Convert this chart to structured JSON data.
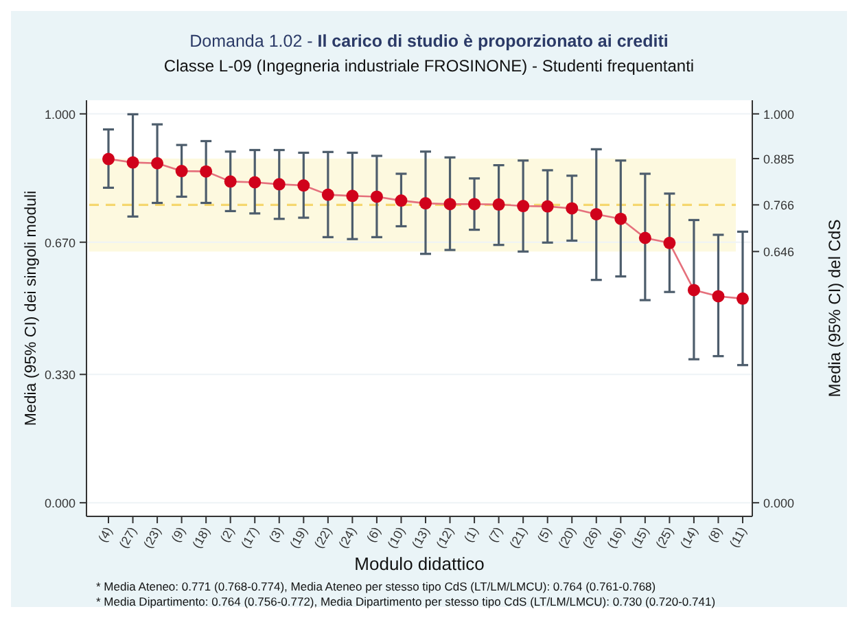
{
  "chart_data": {
    "type": "line",
    "title": "Domanda 1.02 - Il carico di studio è proporzionato ai crediti",
    "subtitle": "Classe L-09 (Ingegneria industriale FROSINONE) - Studenti frequentanti",
    "xlabel": "Modulo didattico",
    "ylabel": "Media (95% CI) dei singoli moduli",
    "y2label": "Media (95% CI) del CdS",
    "categories": [
      "(4)",
      "(27)",
      "(23)",
      "(9)",
      "(18)",
      "(2)",
      "(17)",
      "(3)",
      "(19)",
      "(22)",
      "(24)",
      "(6)",
      "(10)",
      "(13)",
      "(12)",
      "(1)",
      "(7)",
      "(21)",
      "(5)",
      "(20)",
      "(26)",
      "(16)",
      "(15)",
      "(25)",
      "(14)",
      "(8)",
      "(11)"
    ],
    "series": [
      {
        "color": "#d0021b",
        "values": [
          0.884,
          0.875,
          0.873,
          0.853,
          0.852,
          0.826,
          0.824,
          0.819,
          0.816,
          0.792,
          0.789,
          0.787,
          0.777,
          0.77,
          0.768,
          0.768,
          0.767,
          0.763,
          0.762,
          0.757,
          0.742,
          0.73,
          0.681,
          0.668,
          0.547,
          0.531,
          0.525
        ],
        "errors": [
          [
            0.81,
            0.96
          ],
          [
            0.736,
            0.999
          ],
          [
            0.771,
            0.973
          ],
          [
            0.787,
            0.92
          ],
          [
            0.771,
            0.93
          ],
          [
            0.75,
            0.903
          ],
          [
            0.744,
            0.907
          ],
          [
            0.73,
            0.907
          ],
          [
            0.733,
            0.9
          ],
          [
            0.683,
            0.902
          ],
          [
            0.678,
            0.9
          ],
          [
            0.683,
            0.892
          ],
          [
            0.711,
            0.846
          ],
          [
            0.64,
            0.903
          ],
          [
            0.65,
            0.888
          ],
          [
            0.702,
            0.834
          ],
          [
            0.663,
            0.868
          ],
          [
            0.646,
            0.88
          ],
          [
            0.669,
            0.855
          ],
          [
            0.674,
            0.841
          ],
          [
            0.573,
            0.909
          ],
          [
            0.582,
            0.88
          ],
          [
            0.521,
            0.846
          ],
          [
            0.542,
            0.795
          ],
          [
            0.369,
            0.727
          ],
          [
            0.377,
            0.689
          ],
          [
            0.354,
            0.697
          ]
        ]
      }
    ],
    "ylim": [
      -0.035,
      1.035
    ],
    "yticks": [
      {
        "value": 0,
        "label": "0.000"
      },
      {
        "value": 0.33,
        "label": "0.330"
      },
      {
        "value": 0.67,
        "label": "0.670"
      },
      {
        "value": 1,
        "label": "1.000"
      }
    ],
    "y2lim": [
      -0.035,
      1.035
    ],
    "y2ticks": [
      {
        "value": 0,
        "label": "0.000"
      },
      {
        "value": 0.646,
        "label": "0.646"
      },
      {
        "value": 0.766,
        "label": "0.766"
      },
      {
        "value": 0.885,
        "label": "0.885"
      },
      {
        "value": 1,
        "label": "1.000"
      }
    ],
    "ref_lines": [
      {
        "axis": "y2",
        "value": 0.766,
        "color": "#f5d76e",
        "line_style": "dashed"
      }
    ],
    "bands": [
      {
        "axis": "y2",
        "from": 0.646,
        "to": 0.885,
        "color": "#fdf8dc"
      }
    ],
    "grid": "y",
    "marker": "circle",
    "line_style": "solid",
    "annotations": [
      "* Media Ateneo: 0.771 (0.768-0.774),  Media Ateneo per stesso tipo CdS (LT/LM/LMCU): 0.764 (0.761-0.768)",
      "* Media Dipartimento: 0.764 (0.756-0.772), Media Dipartimento per stesso tipo CdS (LT/LM/LMCU): 0.730 (0.720-0.741)"
    ]
  }
}
